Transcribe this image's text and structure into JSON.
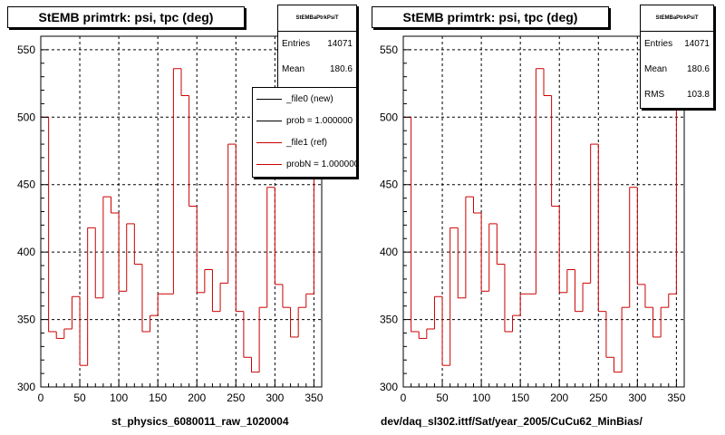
{
  "chart_data": [
    {
      "type": "step",
      "title": "StEMB primtrk: psi, tpc (deg)",
      "xlabel": "st_physics_6080011_raw_1020004",
      "ylabel": "",
      "xlim": [
        0,
        360
      ],
      "ylim": [
        300,
        560
      ],
      "x_ticks": [
        0,
        50,
        100,
        150,
        200,
        250,
        300,
        350
      ],
      "y_ticks": [
        300,
        350,
        400,
        450,
        500,
        550
      ],
      "grid": true,
      "stats": {
        "title": "StEMBaPtrkPsiT",
        "entries_label": "Entries",
        "entries": "14071",
        "mean_label": "Mean",
        "mean": "180.6"
      },
      "legend": {
        "position": "top-right",
        "items": [
          {
            "label": "_file0 (new)",
            "color": "#000000"
          },
          {
            "label": "prob = 1.000000",
            "color": "#000000"
          },
          {
            "label": "_file1 (ref)",
            "color": "#cc0000"
          },
          {
            "label": "probN = 1.000000",
            "color": "#cc0000"
          }
        ]
      },
      "series": [
        {
          "name": "_file1 (ref)",
          "color": "#cc0000",
          "bin_width": 10,
          "x": [
            5,
            15,
            25,
            35,
            45,
            55,
            65,
            75,
            85,
            95,
            105,
            115,
            125,
            135,
            145,
            155,
            165,
            175,
            185,
            195,
            205,
            215,
            225,
            235,
            245,
            255,
            265,
            275,
            285,
            295,
            305,
            315,
            325,
            335,
            345,
            355
          ],
          "values": [
            500,
            341,
            336,
            343,
            367,
            316,
            418,
            366,
            441,
            429,
            371,
            421,
            391,
            341,
            353,
            369,
            369,
            536,
            516,
            434,
            370,
            387,
            356,
            377,
            480,
            356,
            322,
            311,
            359,
            448,
            376,
            359,
            337,
            359,
            369,
            546
          ]
        }
      ]
    },
    {
      "type": "step",
      "title": "StEMB primtrk: psi, tpc (deg)",
      "xlabel": "dev/daq_sl302.ittf/Sat/year_2005/CuCu62_MinBias/",
      "ylabel": "",
      "xlim": [
        0,
        360
      ],
      "ylim": [
        300,
        560
      ],
      "x_ticks": [
        0,
        50,
        100,
        150,
        200,
        250,
        300,
        350
      ],
      "y_ticks": [
        300,
        350,
        400,
        450,
        500,
        550
      ],
      "grid": true,
      "stats": {
        "title": "StEMBaPtrkPsiT",
        "entries_label": "Entries",
        "entries": "14071",
        "mean_label": "Mean",
        "mean": "180.6",
        "rms_label": "RMS",
        "rms": "103.8"
      },
      "series": [
        {
          "name": "",
          "color": "#cc0000",
          "bin_width": 10,
          "x": [
            5,
            15,
            25,
            35,
            45,
            55,
            65,
            75,
            85,
            95,
            105,
            115,
            125,
            135,
            145,
            155,
            165,
            175,
            185,
            195,
            205,
            215,
            225,
            235,
            245,
            255,
            265,
            275,
            285,
            295,
            305,
            315,
            325,
            335,
            345,
            355
          ],
          "values": [
            500,
            341,
            336,
            343,
            367,
            316,
            418,
            366,
            441,
            429,
            371,
            421,
            391,
            341,
            353,
            369,
            369,
            536,
            516,
            434,
            370,
            387,
            356,
            377,
            480,
            356,
            322,
            311,
            359,
            448,
            376,
            359,
            337,
            359,
            369,
            546
          ]
        }
      ]
    }
  ]
}
